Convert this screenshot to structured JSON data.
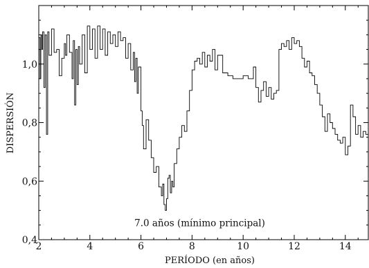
{
  "chart_data": {
    "type": "line",
    "title": "",
    "xlabel": "PERÍODO (en años)",
    "ylabel": "DISPERSIÓN",
    "xlim": [
      2,
      14.9
    ],
    "ylim": [
      0.4,
      1.2
    ],
    "x_ticks": [
      2,
      4,
      6,
      8,
      10,
      12,
      14
    ],
    "x_tick_labels": [
      "2",
      "4",
      "6",
      "8",
      "10",
      "12",
      "14"
    ],
    "y_ticks": [
      0.4,
      0.6,
      0.8,
      1.0
    ],
    "y_tick_labels": [
      "0,4",
      "0,6",
      "0,8",
      "1,0"
    ],
    "grid": false,
    "annotations": [
      {
        "text": "7.0 años (mínimo principal)",
        "x": 7.0,
        "y": 0.455
      }
    ],
    "series": [
      {
        "name": "",
        "color": "#000000",
        "step": true,
        "x": [
          2.0,
          2.05,
          2.08,
          2.12,
          2.15,
          2.2,
          2.25,
          2.3,
          2.35,
          2.4,
          2.5,
          2.6,
          2.7,
          2.8,
          2.9,
          3.0,
          3.05,
          3.1,
          3.2,
          3.3,
          3.35,
          3.4,
          3.45,
          3.5,
          3.55,
          3.6,
          3.7,
          3.8,
          3.9,
          4.0,
          4.1,
          4.2,
          4.3,
          4.4,
          4.5,
          4.6,
          4.7,
          4.8,
          4.9,
          5.0,
          5.1,
          5.2,
          5.3,
          5.4,
          5.5,
          5.6,
          5.7,
          5.75,
          5.8,
          5.85,
          5.9,
          6.0,
          6.05,
          6.1,
          6.2,
          6.3,
          6.4,
          6.5,
          6.6,
          6.7,
          6.8,
          6.85,
          6.9,
          6.95,
          7.0,
          7.05,
          7.1,
          7.15,
          7.2,
          7.25,
          7.3,
          7.4,
          7.5,
          7.6,
          7.7,
          7.8,
          7.9,
          8.0,
          8.1,
          8.2,
          8.3,
          8.4,
          8.5,
          8.6,
          8.7,
          8.8,
          8.9,
          9.0,
          9.2,
          9.4,
          9.6,
          9.8,
          10.0,
          10.2,
          10.4,
          10.5,
          10.6,
          10.7,
          10.8,
          10.9,
          11.0,
          11.1,
          11.2,
          11.3,
          11.4,
          11.5,
          11.6,
          11.7,
          11.8,
          11.9,
          12.0,
          12.1,
          12.2,
          12.3,
          12.4,
          12.5,
          12.6,
          12.7,
          12.8,
          12.9,
          13.0,
          13.1,
          13.2,
          13.3,
          13.4,
          13.5,
          13.6,
          13.7,
          13.8,
          13.9,
          14.0,
          14.1,
          14.2,
          14.3,
          14.4,
          14.5,
          14.6,
          14.7,
          14.8,
          14.9
        ],
        "values": [
          1.09,
          0.95,
          1.1,
          1.05,
          1.11,
          0.92,
          1.1,
          0.76,
          1.11,
          1.03,
          1.12,
          1.04,
          1.05,
          0.96,
          1.02,
          1.07,
          1.03,
          1.1,
          1.04,
          0.95,
          1.08,
          0.86,
          1.05,
          0.93,
          1.06,
          1.0,
          1.1,
          0.97,
          1.13,
          1.05,
          1.12,
          1.02,
          1.13,
          1.05,
          1.12,
          1.03,
          1.11,
          1.07,
          1.1,
          1.06,
          1.11,
          1.08,
          1.09,
          1.02,
          1.07,
          0.98,
          1.04,
          0.94,
          1.02,
          0.9,
          0.99,
          0.84,
          0.79,
          0.71,
          0.81,
          0.74,
          0.68,
          0.63,
          0.65,
          0.58,
          0.55,
          0.59,
          0.52,
          0.5,
          0.54,
          0.61,
          0.62,
          0.56,
          0.6,
          0.58,
          0.66,
          0.71,
          0.75,
          0.79,
          0.77,
          0.84,
          0.91,
          0.98,
          1.01,
          1.02,
          1.0,
          1.04,
          0.99,
          1.03,
          1.01,
          1.05,
          0.98,
          1.03,
          0.97,
          0.96,
          0.95,
          0.95,
          0.96,
          0.95,
          0.99,
          0.92,
          0.87,
          0.91,
          0.94,
          0.89,
          0.92,
          0.88,
          0.9,
          0.91,
          1.05,
          1.07,
          1.06,
          1.08,
          1.05,
          1.09,
          1.07,
          1.08,
          1.06,
          1.02,
          0.99,
          1.01,
          0.97,
          0.96,
          0.93,
          0.9,
          0.86,
          0.82,
          0.77,
          0.83,
          0.8,
          0.78,
          0.76,
          0.74,
          0.73,
          0.75,
          0.69,
          0.72,
          0.86,
          0.82,
          0.76,
          0.79,
          0.75,
          0.77,
          0.76,
          0.77
        ]
      }
    ]
  }
}
